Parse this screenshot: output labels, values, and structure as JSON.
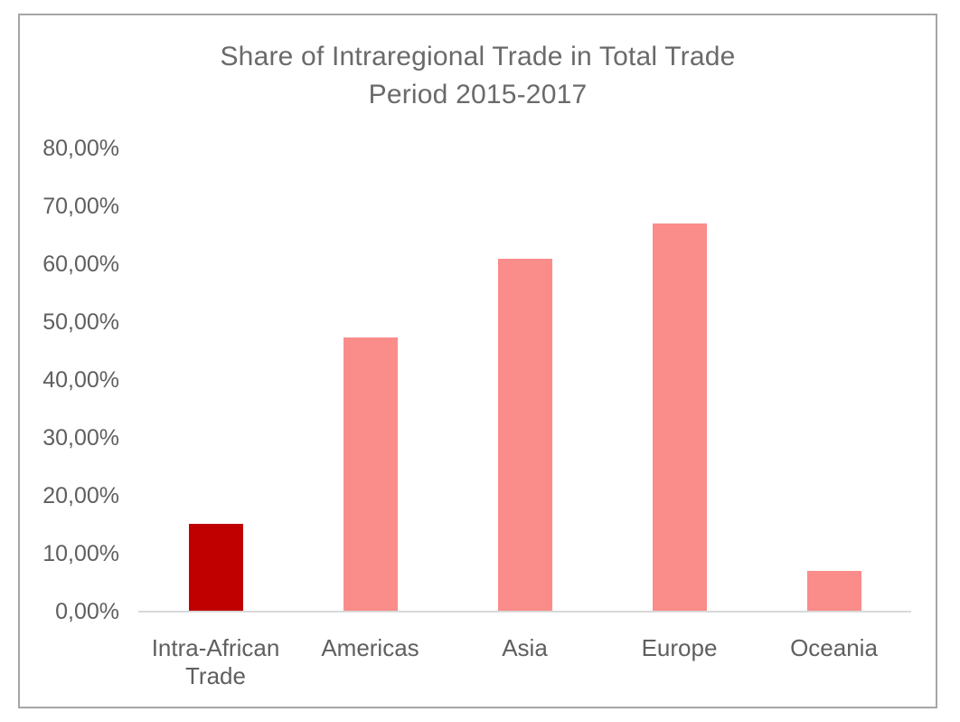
{
  "title": {
    "line1": "Share of Intraregional Trade in Total Trade",
    "line2": "Period 2015-2017"
  },
  "chart_data": {
    "type": "bar",
    "title": "Share of Intraregional Trade in Total Trade",
    "subtitle": "Period 2015-2017",
    "categories": [
      "Intra-African Trade",
      "Americas",
      "Asia",
      "Europe",
      "Oceania"
    ],
    "values": [
      15.2,
      47.3,
      61.0,
      67.0,
      7.0
    ],
    "value_unit": "%",
    "xlabel": "",
    "ylabel": "",
    "ylim": [
      0,
      80
    ],
    "ytick_step": 10,
    "ytick_labels": [
      "0,00%",
      "10,00%",
      "20,00%",
      "30,00%",
      "40,00%",
      "50,00%",
      "60,00%",
      "70,00%",
      "80,00%"
    ],
    "grid": false,
    "legend_position": "none",
    "bar_colors": [
      "#c00000",
      "#fa8c8a",
      "#fa8c8a",
      "#fa8c8a",
      "#fa8c8a"
    ]
  },
  "colors": {
    "highlight_bar": "#c00000",
    "regular_bar": "#fa8c8a",
    "axis_line": "#d9d9d9",
    "frame_border": "#a6a6a6",
    "title_text": "#6a6a6a",
    "tick_text": "#5f5f5f"
  }
}
